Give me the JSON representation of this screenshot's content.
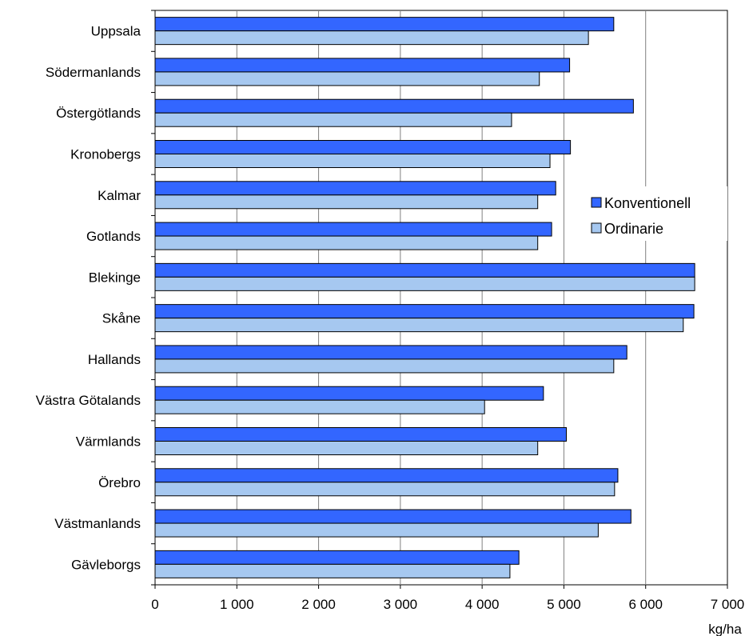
{
  "chart_data": {
    "type": "bar",
    "orientation": "horizontal",
    "categories": [
      "Uppsala",
      "Södermanlands",
      "Östergötlands",
      "Kronobergs",
      "Kalmar",
      "Gotlands",
      "Blekinge",
      "Skåne",
      "Hallands",
      "Västra Götalands",
      "Värmlands",
      "Örebro",
      "Västmanlands",
      "Gävleborgs"
    ],
    "series": [
      {
        "name": "Konventionell",
        "color": "#3366ff",
        "values": [
          5610,
          5070,
          5850,
          5080,
          4900,
          4850,
          6600,
          6590,
          5770,
          4750,
          5030,
          5660,
          5820,
          4450
        ]
      },
      {
        "name": "Ordinarie",
        "color": "#a6c8f0",
        "values": [
          5300,
          4700,
          4360,
          4830,
          4680,
          4680,
          6600,
          6460,
          5610,
          4030,
          4680,
          5620,
          5420,
          4340
        ]
      }
    ],
    "xlim": [
      0,
      7000
    ],
    "ticks": [
      "0",
      "1 000",
      "2 000",
      "3 000",
      "4 000",
      "5 000",
      "6 000",
      "7 000"
    ],
    "tick_values": [
      0,
      1000,
      2000,
      3000,
      4000,
      5000,
      6000,
      7000
    ],
    "unit_label": "kg/ha",
    "grid": "vertical",
    "legend_position": "right"
  }
}
